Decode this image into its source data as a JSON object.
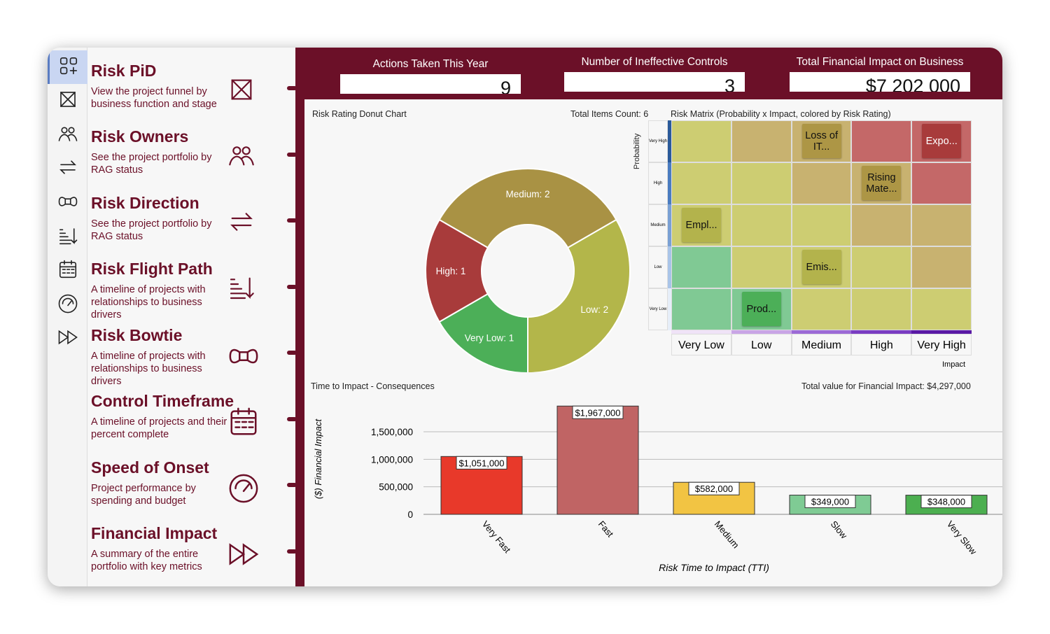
{
  "kpis": [
    {
      "label": "Actions Taken This Year",
      "value": "9"
    },
    {
      "label": "Number of Ineffective Controls",
      "value": "3"
    },
    {
      "label": "Total Financial Impact on Business",
      "value": "$7 202 000"
    }
  ],
  "menu": [
    {
      "title": "Risk PiD",
      "desc": "View the project funnel by business function and stage",
      "icon": "dashboard-add-icon"
    },
    {
      "title": "Risk Owners",
      "desc": "See the project portfolio by RAG status",
      "icon": "people-icon"
    },
    {
      "title": "Risk Direction",
      "desc": "See the project portfolio by RAG status",
      "icon": "arrows-swap-icon"
    },
    {
      "title": "Risk Flight Path",
      "desc": "A timeline of projects with relationships to business drivers",
      "icon": "sort-descending-icon"
    },
    {
      "title": "Risk Bowtie",
      "desc": "A timeline of projects with relationships to business drivers",
      "icon": "bowtie-icon"
    },
    {
      "title": "Control Timeframe",
      "desc": "A timeline of projects and their percent complete",
      "icon": "calendar-icon"
    },
    {
      "title": "Speed of Onset",
      "desc": "Project performance by spending and budget",
      "icon": "gauge-icon"
    },
    {
      "title": "Financial Impact",
      "desc": "A summary of the entire portfolio with key metrics",
      "icon": "fast-forward-icon"
    }
  ],
  "donut": {
    "title": "Risk Rating Donut Chart",
    "total": "Total Items Count: 6"
  },
  "matrix": {
    "title": "Risk Matrix (Probability x Impact, colored by Risk Rating)",
    "ylabel": "Probability",
    "xlabel": "Impact",
    "rows": [
      "Very High",
      "High",
      "Medium",
      "Low",
      "Very Low"
    ],
    "cols": [
      "Very Low",
      "Low",
      "Medium",
      "High",
      "Very High"
    ],
    "row_colors": [
      "#2a5a9a",
      "#4a7cc0",
      "#7aa0d4",
      "#a9c4e8",
      "#e6eef9"
    ],
    "col_colors": [
      "#efe3f7",
      "#c9a5e6",
      "#9c6ad6",
      "#7a3dc2",
      "#5a1aa5"
    ],
    "cells": [
      [
        "#cdcd72",
        "#c8b270",
        "#c8b270",
        "#c46868",
        "#c46868"
      ],
      [
        "#cdcd72",
        "#cdcd72",
        "#c8b270",
        "#c8b270",
        "#c46868"
      ],
      [
        "#cdcd72",
        "#cdcd72",
        "#cdcd72",
        "#c8b270",
        "#c8b270"
      ],
      [
        "#80c994",
        "#cdcd72",
        "#cdcd72",
        "#cdcd72",
        "#c8b270"
      ],
      [
        "#80c994",
        "#80c994",
        "#cdcd72",
        "#cdcd72",
        "#cdcd72"
      ]
    ],
    "items": [
      {
        "label": "Loss of IT...",
        "row": 0,
        "col": 2,
        "color": "#ad9645",
        "text": "#111"
      },
      {
        "label": "Expo...",
        "row": 0,
        "col": 4,
        "color": "#a83b3b",
        "text": "#fff"
      },
      {
        "label": "Rising Mate...",
        "row": 1,
        "col": 3,
        "color": "#ad9645",
        "text": "#111"
      },
      {
        "label": "Empl...",
        "row": 2,
        "col": 0,
        "color": "#b3b34c",
        "text": "#111"
      },
      {
        "label": "Emis...",
        "row": 3,
        "col": 2,
        "color": "#b3b34c",
        "text": "#111"
      },
      {
        "label": "Prod...",
        "row": 4,
        "col": 1,
        "color": "#4caf58",
        "text": "#111"
      }
    ]
  },
  "bars": {
    "title": "Time to Impact - Consequences",
    "total": "Total value for Financial Impact: $4,297,000"
  },
  "chart_data": [
    {
      "type": "pie",
      "title": "Risk Rating Donut Chart",
      "categories": [
        "Medium",
        "Low",
        "Very Low",
        "High"
      ],
      "values": [
        2,
        2,
        1,
        1
      ],
      "labels": [
        "Medium: 2",
        "Low: 2",
        "Very Low: 1",
        "High: 1"
      ],
      "colors": [
        "#a99244",
        "#b3b64a",
        "#4caf58",
        "#a83b3b"
      ]
    },
    {
      "type": "bar",
      "title": "Time to Impact - Consequences",
      "xlabel": "Risk Time to Impact (TTI)",
      "ylabel": "($) Financial Impact",
      "categories": [
        "Very Fast",
        "Fast",
        "Medium",
        "Slow",
        "Very Slow"
      ],
      "values": [
        1051000,
        1967000,
        582000,
        349000,
        348000
      ],
      "labels": [
        "$1,051,000",
        "$1,967,000",
        "$582,000",
        "$349,000",
        "$348,000"
      ],
      "colors": [
        "#e8392a",
        "#c06464",
        "#f2c443",
        "#7fcb94",
        "#4caf50"
      ],
      "yticks": [
        0,
        500000,
        1000000,
        1500000
      ],
      "ytick_labels": [
        "0",
        "500,000",
        "1,000,000",
        "1,500,000"
      ],
      "grid": true
    }
  ]
}
